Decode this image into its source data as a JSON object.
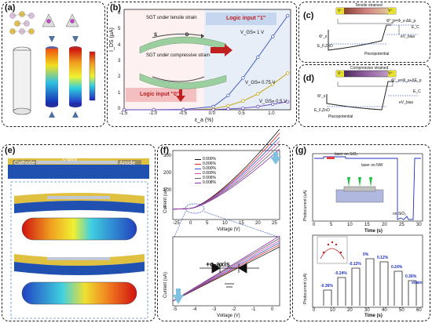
{
  "panels": {
    "a": {
      "label": "(a)"
    },
    "b": {
      "label": "(b)"
    },
    "c": {
      "label": "(c)"
    },
    "d": {
      "label": "(d)"
    },
    "e": {
      "label": "(e)"
    },
    "f": {
      "label": "(f)"
    },
    "g": {
      "label": "(g)"
    }
  },
  "panel_b": {
    "ylabel": "I_DS (µA)",
    "xlabel": "ε_a (%)",
    "logic1": "Logic input \"1\"",
    "logic0": "Logic input \"0\"",
    "tensile": "SGT under tensile strain",
    "compressive": "SGT under compressive strain",
    "v1": "V_GS= 1 V",
    "v2": "V_GS= 0.75 V",
    "v3": "V_GS= 0.5 V",
    "s_label": "S",
    "d_label": "D",
    "yticks": [
      "0",
      "1",
      "2",
      "3",
      "4",
      "5",
      "6"
    ],
    "xticks": [
      "-1.5",
      "-1.0",
      "-0.5",
      "0.0",
      "0.5",
      "1.0"
    ]
  },
  "panel_c": {
    "title": "Tensile strained",
    "phi_label": "Φ'_s",
    "phi_eq": "Φ''_s=Φ_s-ΔE_p",
    "ec": "E_C",
    "ef": "E_F,ZnO",
    "ev": "eV_bias",
    "piezo": "Piezopotential",
    "vm": "V⁻",
    "vp": "V⁺"
  },
  "panel_d": {
    "title": "Compressive strained",
    "phi_eq": "Φ''_s=Φ_s+ΔE_p",
    "phi_label": "Φ'_s",
    "ec": "E_C",
    "ef": "E_F,ZnO",
    "ev": "eV_bias",
    "piezo": "Piezopotential",
    "vm": "V⁻",
    "vp": "V⁺"
  },
  "panel_e": {
    "cathode": "Cathode",
    "caxis": "c-axis",
    "anode": "Anode"
  },
  "panel_f": {
    "ylabel": "Current (uA)",
    "xlabel": "Voltage (V)",
    "legend": [
      "0.000%",
      "0.006%",
      "0.000%",
      "0.000%",
      "0.006%",
      "0.008%"
    ],
    "legend_colors": [
      "#111111",
      "#e02020",
      "#3050d0",
      "#d050c0",
      "#606060",
      "#9030b0"
    ],
    "top_yticks": [
      "300",
      "200",
      "100",
      "0"
    ],
    "top_xticks": [
      "-25",
      "0",
      "5",
      "10",
      "15",
      "20",
      "25"
    ],
    "bot_xticks": [
      "-5",
      "-4",
      "-3",
      "-2",
      "-1",
      "0"
    ],
    "caxis": "+c-axis"
  },
  "panel_g": {
    "top_ylabel": "Photocurrent (uA)",
    "top_xlabel": "Time (s)",
    "laser_on_sio2": "laser on SiO₂",
    "laser_on_nw": "laser on NW",
    "on_sio2": "on SiO₂",
    "top_xticks": [
      "0",
      "5",
      "10",
      "15",
      "20",
      "25",
      "30"
    ],
    "bot_ylabel": "Photocurrent (uA)",
    "bot_xlabel": "Time (s)",
    "bot_xticks": [
      "0",
      "10",
      "20",
      "30",
      "40",
      "50",
      "60"
    ],
    "strain_labels": [
      "-0.36%",
      "-0.24%",
      "-0.12%",
      "0%",
      "0.12%",
      "0.24%",
      "0.36%"
    ],
    "strain_word": "strain",
    "inset_legend": [
      "Experiment",
      "Calculation"
    ],
    "inset_xlabel": "Strain (%)"
  },
  "chart_data": [
    {
      "type": "line",
      "title": "",
      "xlabel": "ε_a (%)",
      "ylabel": "I_DS (µA)",
      "xlim": [
        -1.5,
        1.3
      ],
      "ylim": [
        0,
        6.3
      ],
      "series": [
        {
          "name": "V_GS= 1 V",
          "x": [
            -1.5,
            -1.0,
            -0.5,
            0.0,
            0.25,
            0.5,
            0.75,
            1.0,
            1.25
          ],
          "values": [
            0.0,
            0.0,
            0.02,
            0.2,
            0.9,
            2.0,
            3.3,
            4.6,
            5.9
          ]
        },
        {
          "name": "V_GS= 0.75 V",
          "x": [
            -1.5,
            -1.0,
            -0.5,
            0.0,
            0.25,
            0.5,
            0.75,
            1.0,
            1.25
          ],
          "values": [
            0.0,
            0.0,
            0.0,
            0.05,
            0.25,
            0.55,
            1.0,
            1.6,
            2.3
          ]
        },
        {
          "name": "V_GS= 0.5 V",
          "x": [
            -1.5,
            -1.0,
            -0.5,
            0.0,
            0.25,
            0.5,
            0.75,
            1.0,
            1.25
          ],
          "values": [
            0.0,
            0.0,
            0.0,
            0.0,
            0.05,
            0.1,
            0.2,
            0.35,
            0.5
          ]
        }
      ]
    },
    {
      "type": "bar",
      "title": "",
      "xlabel": "Time (s)",
      "ylabel": "Photocurrent (uA)",
      "categories": [
        "-0.36%",
        "-0.24%",
        "-0.12%",
        "0%",
        "0.12%",
        "0.24%",
        "0.36%"
      ],
      "values": [
        0.25,
        0.45,
        0.6,
        0.75,
        0.7,
        0.55,
        0.4
      ]
    }
  ]
}
